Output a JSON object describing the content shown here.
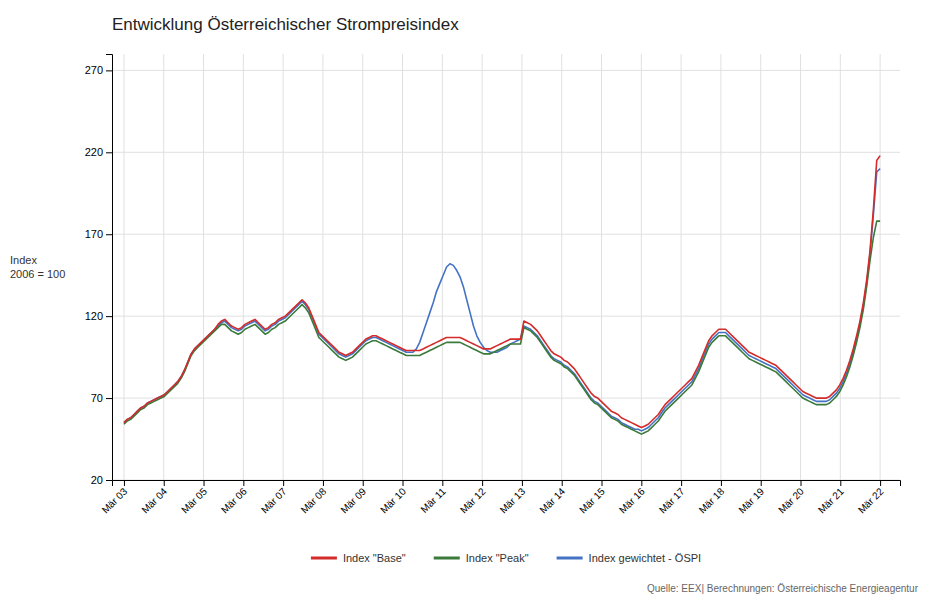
{
  "chart_data": {
    "type": "line",
    "title": "Entwicklung Österreichischer Strompreisindex",
    "ylabel": "Index\n2006 = 100",
    "annotations": [
      "Quelle: EEX| Berechnungen: Österreichische Energieagentur"
    ],
    "grid": true,
    "legend": "bottom",
    "xlim": [
      -0.3,
      19.5
    ],
    "xticks": [
      {
        "value": 0,
        "label": "Mär 03"
      },
      {
        "value": 1,
        "label": "Mär 04"
      },
      {
        "value": 2,
        "label": "Mär 05"
      },
      {
        "value": 3,
        "label": "Mär 06"
      },
      {
        "value": 4,
        "label": "Mär 07"
      },
      {
        "value": 5,
        "label": "Mär 08"
      },
      {
        "value": 6,
        "label": "Mär 09"
      },
      {
        "value": 7,
        "label": "Mär 10"
      },
      {
        "value": 8,
        "label": "Mär 11"
      },
      {
        "value": 9,
        "label": "Mär 12"
      },
      {
        "value": 10,
        "label": "Mär 13"
      },
      {
        "value": 11,
        "label": "Mär 14"
      },
      {
        "value": 12,
        "label": "Mär 15"
      },
      {
        "value": 13,
        "label": "Mär 16"
      },
      {
        "value": 14,
        "label": "Mär 17"
      },
      {
        "value": 15,
        "label": "Mär 18"
      },
      {
        "value": 16,
        "label": "Mär 19"
      },
      {
        "value": 17,
        "label": "Mär 20"
      },
      {
        "value": 18,
        "label": "Mär 21"
      },
      {
        "value": 19,
        "label": "Mär 22"
      }
    ],
    "ylim": [
      20,
      280
    ],
    "yticks": [
      20,
      70,
      120,
      170,
      220,
      270
    ],
    "x": [
      0,
      0.0844,
      0.1689,
      0.2533,
      0.3378,
      0.4222,
      0.5067,
      0.5911,
      0.6756,
      0.76,
      0.8444,
      0.9289,
      1.0133,
      1.0978,
      1.1822,
      1.2667,
      1.3511,
      1.4356,
      1.52,
      1.6044,
      1.6889,
      1.7733,
      1.8578,
      1.9422,
      2.0267,
      2.1111,
      2.1956,
      2.28,
      2.3644,
      2.4489,
      2.5333,
      2.6178,
      2.7022,
      2.7867,
      2.8711,
      2.9556,
      3.04,
      3.1244,
      3.2089,
      3.2933,
      3.3778,
      3.4622,
      3.5467,
      3.6311,
      3.7156,
      3.8,
      3.8844,
      3.9689,
      4.0533,
      4.1378,
      4.2222,
      4.3067,
      4.3911,
      4.4756,
      4.56,
      4.6444,
      4.7289,
      4.8133,
      4.8978,
      4.9822,
      5.0667,
      5.1511,
      5.2356,
      5.32,
      5.4044,
      5.4889,
      5.5733,
      5.6578,
      5.7422,
      5.8267,
      5.9111,
      5.9956,
      6.08,
      6.1644,
      6.2489,
      6.3333,
      6.4178,
      6.5022,
      6.5867,
      6.6711,
      6.7556,
      6.84,
      6.9244,
      7.0089,
      7.0933,
      7.1778,
      7.2622,
      7.3467,
      7.4311,
      7.5156,
      7.6,
      7.6844,
      7.7689,
      7.8533,
      7.9378,
      8.0222,
      8.1067,
      8.1911,
      8.2756,
      8.36,
      8.4444,
      8.5289,
      8.6133,
      8.6978,
      8.7822,
      8.8667,
      8.9511,
      9.0356,
      9.12,
      9.2044,
      9.2889,
      9.3733,
      9.4578,
      9.5422,
      9.6267,
      9.7111,
      9.7956,
      9.88,
      9.9644,
      10.0489,
      10.1333,
      10.2178,
      10.3022,
      10.3867,
      10.4711,
      10.5556,
      10.64,
      10.7244,
      10.8089,
      10.8933,
      10.9778,
      11.0622,
      11.1467,
      11.2311,
      11.3156,
      11.4,
      11.4844,
      11.5689,
      11.6533,
      11.7378,
      11.8222,
      11.9067,
      11.9911,
      12.0756,
      12.16,
      12.2444,
      12.3289,
      12.4133,
      12.4978,
      12.5822,
      12.6667,
      12.7511,
      12.8356,
      12.92,
      13.0044,
      13.0889,
      13.1733,
      13.2578,
      13.3422,
      13.4267,
      13.5111,
      13.5956,
      13.68,
      13.7644,
      13.8489,
      13.9333,
      14.0178,
      14.1022,
      14.1867,
      14.2711,
      14.3556,
      14.44,
      14.5244,
      14.6089,
      14.6933,
      14.7778,
      14.8622,
      14.9467,
      15.0311,
      15.1156,
      15.2,
      15.2844,
      15.3689,
      15.4533,
      15.5378,
      15.6222,
      15.7067,
      15.7911,
      15.8756,
      15.96,
      16.0444,
      16.1289,
      16.2133,
      16.2978,
      16.3822,
      16.4667,
      16.5511,
      16.6356,
      16.72,
      16.8044,
      16.8889,
      16.9733,
      17.0578,
      17.1422,
      17.2267,
      17.3111,
      17.3956,
      17.48,
      17.5644,
      17.6489,
      17.7333,
      17.8178,
      17.9022,
      17.9867,
      18.0711,
      18.1556,
      18.24,
      18.3244,
      18.4089,
      18.4933,
      18.5778,
      18.6622,
      18.7467,
      18.8311,
      18.9156,
      19
    ],
    "series": [
      {
        "name": "Index \"Base\"",
        "color": "#d42b2b",
        "values": [
          55,
          57,
          58,
          60,
          62,
          64,
          65,
          67,
          68,
          69,
          70,
          71,
          72,
          74,
          76,
          78,
          80,
          83,
          87,
          92,
          97,
          100,
          102,
          104,
          106,
          108,
          110,
          112,
          115,
          117,
          118,
          116,
          114,
          113,
          112,
          113,
          115,
          116,
          117,
          118,
          116,
          114,
          112,
          113,
          115,
          116,
          118,
          119,
          120,
          122,
          124,
          126,
          128,
          130,
          128,
          125,
          120,
          115,
          110,
          108,
          106,
          104,
          102,
          100,
          98,
          97,
          96,
          97,
          98,
          100,
          102,
          104,
          106,
          107,
          108,
          108,
          107,
          106,
          105,
          104,
          103,
          102,
          101,
          100,
          99,
          99,
          99,
          99,
          99,
          100,
          101,
          102,
          103,
          104,
          105,
          106,
          107,
          107,
          107,
          107,
          107,
          106,
          105,
          104,
          103,
          102,
          101,
          100,
          100,
          100,
          101,
          102,
          103,
          104,
          105,
          106,
          106,
          106,
          106,
          117,
          116,
          115,
          113,
          111,
          108,
          105,
          102,
          99,
          97,
          96,
          95,
          93,
          92,
          90,
          88,
          85,
          82,
          79,
          76,
          73,
          71,
          70,
          68,
          66,
          64,
          62,
          61,
          60,
          58,
          57,
          56,
          55,
          54,
          53,
          52,
          53,
          54,
          56,
          58,
          60,
          63,
          66,
          68,
          70,
          72,
          74,
          76,
          78,
          80,
          82,
          86,
          90,
          95,
          100,
          105,
          108,
          110,
          112,
          112,
          112,
          110,
          108,
          106,
          104,
          102,
          100,
          98,
          97,
          96,
          95,
          94,
          93,
          92,
          91,
          90,
          88,
          86,
          84,
          82,
          80,
          78,
          76,
          74,
          73,
          72,
          71,
          70,
          70,
          70,
          70,
          71,
          73,
          75,
          78,
          82,
          87,
          93,
          100,
          108,
          117,
          128,
          142,
          160,
          185,
          215,
          218
        ]
      },
      {
        "name": "Index \"Peak\"",
        "color": "#3a7a3a",
        "values": [
          54,
          56,
          57,
          59,
          61,
          63,
          64,
          66,
          67,
          68,
          69,
          70,
          71,
          73,
          75,
          77,
          79,
          82,
          86,
          91,
          96,
          99,
          101,
          103,
          105,
          107,
          109,
          111,
          113,
          115,
          115,
          113,
          111,
          110,
          109,
          110,
          112,
          113,
          114,
          115,
          113,
          111,
          109,
          110,
          112,
          113,
          115,
          116,
          117,
          119,
          121,
          123,
          125,
          127,
          125,
          122,
          117,
          112,
          107,
          105,
          103,
          101,
          99,
          97,
          95,
          94,
          93,
          94,
          95,
          97,
          99,
          101,
          103,
          104,
          105,
          105,
          104,
          103,
          102,
          101,
          100,
          99,
          98,
          97,
          96,
          96,
          96,
          96,
          96,
          97,
          98,
          99,
          100,
          101,
          102,
          103,
          104,
          104,
          104,
          104,
          104,
          103,
          102,
          101,
          100,
          99,
          98,
          97,
          97,
          97,
          98,
          99,
          100,
          101,
          102,
          103,
          103,
          103,
          103,
          113,
          112,
          111,
          109,
          107,
          104,
          101,
          98,
          95,
          93,
          92,
          91,
          89,
          88,
          86,
          84,
          81,
          78,
          75,
          72,
          69,
          67,
          66,
          64,
          62,
          60,
          58,
          57,
          56,
          54,
          53,
          52,
          51,
          50,
          49,
          48,
          49,
          50,
          52,
          54,
          56,
          59,
          62,
          64,
          66,
          68,
          70,
          72,
          74,
          76,
          78,
          82,
          86,
          91,
          96,
          101,
          104,
          106,
          108,
          108,
          108,
          106,
          104,
          102,
          100,
          98,
          96,
          94,
          93,
          92,
          91,
          90,
          89,
          88,
          87,
          86,
          84,
          82,
          80,
          78,
          76,
          74,
          72,
          70,
          69,
          68,
          67,
          66,
          66,
          66,
          66,
          67,
          69,
          71,
          74,
          78,
          83,
          89,
          96,
          104,
          113,
          124,
          138,
          154,
          168,
          178,
          178
        ]
      },
      {
        "name": "Index gewichtet  - ÖSPI",
        "color": "#4472c4",
        "values": [
          55,
          57,
          58,
          60,
          62,
          64,
          65,
          67,
          68,
          69,
          70,
          71,
          72,
          74,
          76,
          78,
          80,
          83,
          87,
          92,
          97,
          100,
          102,
          104,
          106,
          108,
          110,
          112,
          114,
          116,
          117,
          115,
          113,
          112,
          111,
          112,
          114,
          115,
          116,
          117,
          115,
          113,
          111,
          112,
          114,
          115,
          117,
          118,
          119,
          121,
          123,
          125,
          127,
          129,
          127,
          124,
          119,
          114,
          109,
          107,
          105,
          103,
          101,
          99,
          97,
          96,
          95,
          96,
          97,
          99,
          101,
          103,
          105,
          106,
          107,
          107,
          106,
          105,
          104,
          103,
          102,
          101,
          100,
          99,
          98,
          98,
          98,
          100,
          104,
          110,
          116,
          122,
          128,
          135,
          140,
          145,
          150,
          152,
          151,
          148,
          144,
          138,
          130,
          122,
          114,
          108,
          104,
          101,
          99,
          98,
          98,
          98,
          99,
          100,
          101,
          103,
          104,
          105,
          106,
          114,
          113,
          112,
          110,
          108,
          105,
          102,
          99,
          96,
          94,
          93,
          92,
          90,
          89,
          87,
          85,
          82,
          79,
          76,
          73,
          70,
          68,
          67,
          65,
          63,
          61,
          59,
          58,
          57,
          55,
          54,
          53,
          52,
          51,
          51,
          50,
          51,
          52,
          54,
          56,
          58,
          61,
          64,
          66,
          68,
          70,
          72,
          74,
          76,
          78,
          80,
          84,
          88,
          93,
          98,
          103,
          106,
          108,
          110,
          110,
          110,
          108,
          106,
          104,
          102,
          100,
          98,
          96,
          95,
          94,
          93,
          92,
          91,
          90,
          89,
          88,
          86,
          84,
          82,
          80,
          78,
          76,
          74,
          72,
          71,
          70,
          69,
          68,
          68,
          68,
          68,
          69,
          71,
          73,
          76,
          80,
          85,
          91,
          98,
          106,
          115,
          126,
          140,
          158,
          182,
          208,
          210
        ]
      }
    ]
  }
}
